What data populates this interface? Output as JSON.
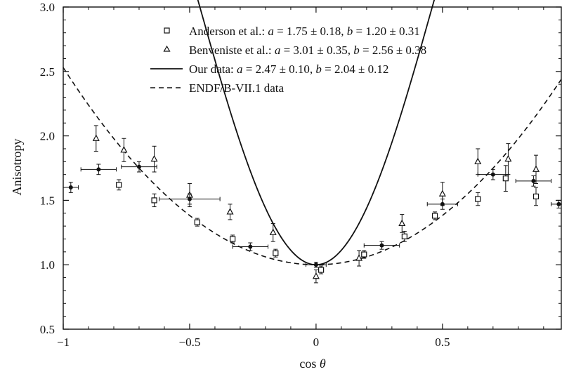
{
  "chart_data": {
    "type": "scatter",
    "xlabel_text": "cos ",
    "xlabel_symbol": "θ",
    "ylabel": "Anisotropy",
    "xlim": [
      -1,
      0.97
    ],
    "ylim": [
      0.5,
      3.0
    ],
    "x_ticks": [
      -1,
      -0.5,
      0,
      0.5
    ],
    "x_tick_labels": [
      "−1",
      "−0.5",
      "0",
      "0.5"
    ],
    "y_ticks": [
      0.5,
      1.0,
      1.5,
      2.0,
      2.5,
      3.0
    ],
    "y_tick_labels": [
      "0.5",
      "1.0",
      "1.5",
      "2.0",
      "2.5",
      "3.0"
    ],
    "legend_position": "top-right",
    "series": [
      {
        "name": "Anderson et al.",
        "legend_a_label": "a",
        "legend_a_value": " = 1.75 ± 0.18, ",
        "legend_b_label": "b",
        "legend_b_value": " = 1.20 ± 0.31",
        "marker": "square",
        "points": [
          {
            "x": -0.78,
            "y": 1.62,
            "yerr": 0.04
          },
          {
            "x": -0.64,
            "y": 1.5,
            "yerr": 0.05
          },
          {
            "x": -0.47,
            "y": 1.33,
            "yerr": 0.03
          },
          {
            "x": -0.33,
            "y": 1.2,
            "yerr": 0.03
          },
          {
            "x": -0.16,
            "y": 1.09,
            "yerr": 0.03
          },
          {
            "x": 0.02,
            "y": 0.96,
            "yerr": 0.03
          },
          {
            "x": 0.19,
            "y": 1.08,
            "yerr": 0.03
          },
          {
            "x": 0.35,
            "y": 1.22,
            "yerr": 0.04
          },
          {
            "x": 0.47,
            "y": 1.38,
            "yerr": 0.03
          },
          {
            "x": 0.64,
            "y": 1.51,
            "yerr": 0.05
          },
          {
            "x": 0.75,
            "y": 1.67,
            "yerr": 0.1
          },
          {
            "x": 0.87,
            "y": 1.53,
            "yerr": 0.07
          }
        ]
      },
      {
        "name": "Benveniste et al.",
        "legend_a_label": "a",
        "legend_a_value": " = 3.01 ± 0.35, ",
        "legend_b_label": "b",
        "legend_b_value": " = 2.56 ± 0.38",
        "marker": "triangle",
        "points": [
          {
            "x": -0.87,
            "y": 1.98,
            "yerr": 0.1
          },
          {
            "x": -0.76,
            "y": 1.89,
            "yerr": 0.09
          },
          {
            "x": -0.64,
            "y": 1.82,
            "yerr": 0.1
          },
          {
            "x": -0.5,
            "y": 1.54,
            "yerr": 0.09
          },
          {
            "x": -0.34,
            "y": 1.41,
            "yerr": 0.06
          },
          {
            "x": -0.17,
            "y": 1.25,
            "yerr": 0.07
          },
          {
            "x": 0.0,
            "y": 0.91,
            "yerr": 0.05
          },
          {
            "x": 0.17,
            "y": 1.05,
            "yerr": 0.06
          },
          {
            "x": 0.34,
            "y": 1.32,
            "yerr": 0.07
          },
          {
            "x": 0.5,
            "y": 1.55,
            "yerr": 0.09
          },
          {
            "x": 0.64,
            "y": 1.8,
            "yerr": 0.1
          },
          {
            "x": 0.76,
            "y": 1.82,
            "yerr": 0.12
          },
          {
            "x": 0.87,
            "y": 1.74,
            "yerr": 0.11
          }
        ]
      },
      {
        "name": "Our data:",
        "legend_a_label": "a",
        "legend_a_value": " = 2.47 ± 0.10, ",
        "legend_b_label": "b",
        "legend_b_value": " = 2.04 ± 0.12",
        "marker": "dot-line",
        "fit_a": 2.47,
        "fit_b": 2.04,
        "points": [
          {
            "x": -0.97,
            "y": 1.6,
            "xerr": 0.03,
            "yerr": 0.04
          },
          {
            "x": -0.86,
            "y": 1.74,
            "xerr": 0.07,
            "yerr": 0.04
          },
          {
            "x": -0.7,
            "y": 1.76,
            "xerr": 0.07,
            "yerr": 0.04
          },
          {
            "x": -0.5,
            "y": 1.51,
            "xerr": 0.12,
            "yerr": 0.04
          },
          {
            "x": -0.26,
            "y": 1.14,
            "xerr": 0.07,
            "yerr": 0.03
          },
          {
            "x": 0.0,
            "y": 1.0,
            "xerr": 0.04,
            "yerr": 0.02
          },
          {
            "x": 0.26,
            "y": 1.15,
            "xerr": 0.07,
            "yerr": 0.03
          },
          {
            "x": 0.5,
            "y": 1.47,
            "xerr": 0.06,
            "yerr": 0.04
          },
          {
            "x": 0.7,
            "y": 1.7,
            "xerr": 0.06,
            "yerr": 0.04
          },
          {
            "x": 0.86,
            "y": 1.65,
            "xerr": 0.07,
            "yerr": 0.04
          },
          {
            "x": 0.96,
            "y": 1.47,
            "xerr": 0.03,
            "yerr": 0.03
          }
        ]
      },
      {
        "name": "ENDF/B-VII.1 data",
        "marker": "dashed-line",
        "curve_form": "1 + c·x²",
        "c": 1.53
      }
    ]
  }
}
